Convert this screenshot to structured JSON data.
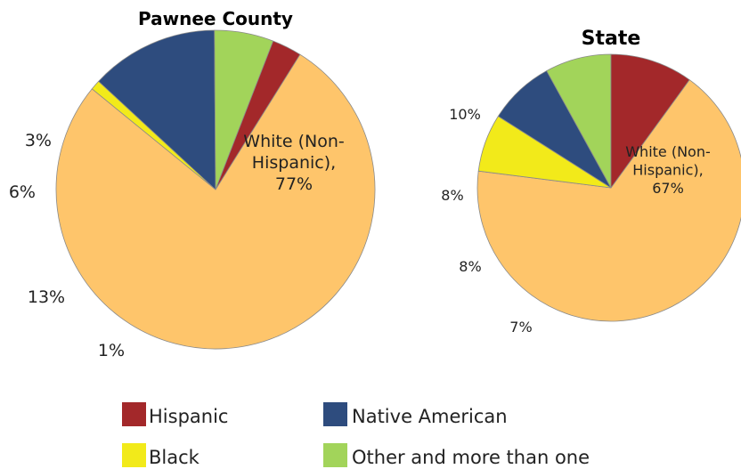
{
  "chart_data": [
    {
      "type": "pie",
      "title": "Pawnee County",
      "slices": [
        {
          "name": "White (Non-Hispanic)",
          "value": 77,
          "color": "#FEC56B",
          "label_lines": [
            "White (Non-",
            "Hispanic),",
            "77%"
          ]
        },
        {
          "name": "Black",
          "value": 1,
          "color": "#F2EA1A",
          "label_lines": [
            "1%"
          ]
        },
        {
          "name": "Native American",
          "value": 13,
          "color": "#2E4C7E",
          "label_lines": [
            "13%"
          ]
        },
        {
          "name": "Other and more than one",
          "value": 6,
          "color": "#A2D45A",
          "label_lines": [
            "6%"
          ]
        },
        {
          "name": "Hispanic",
          "value": 3,
          "color": "#A3282A",
          "label_lines": [
            "3%"
          ]
        }
      ]
    },
    {
      "type": "pie",
      "title": "State",
      "slices": [
        {
          "name": "White (Non-Hispanic)",
          "value": 67,
          "color": "#FEC56B",
          "label_lines": [
            "White (Non-",
            "Hispanic),",
            "67%"
          ]
        },
        {
          "name": "Black",
          "value": 7,
          "color": "#F2EA1A",
          "label_lines": [
            "7%"
          ]
        },
        {
          "name": "Native American",
          "value": 8,
          "color": "#2E4C7E",
          "label_lines": [
            "8%"
          ]
        },
        {
          "name": "Other and more than one",
          "value": 8,
          "color": "#A2D45A",
          "label_lines": [
            "8%"
          ]
        },
        {
          "name": "Hispanic",
          "value": 10,
          "color": "#A3282A",
          "label_lines": [
            "10%"
          ]
        }
      ]
    }
  ],
  "legend": {
    "items": [
      {
        "label": "Hispanic",
        "color": "#A3282A"
      },
      {
        "label": "Native American",
        "color": "#2E4C7E"
      },
      {
        "label": "Black",
        "color": "#F2EA1A"
      },
      {
        "label": "Other and more than one",
        "color": "#A2D45A"
      }
    ]
  }
}
